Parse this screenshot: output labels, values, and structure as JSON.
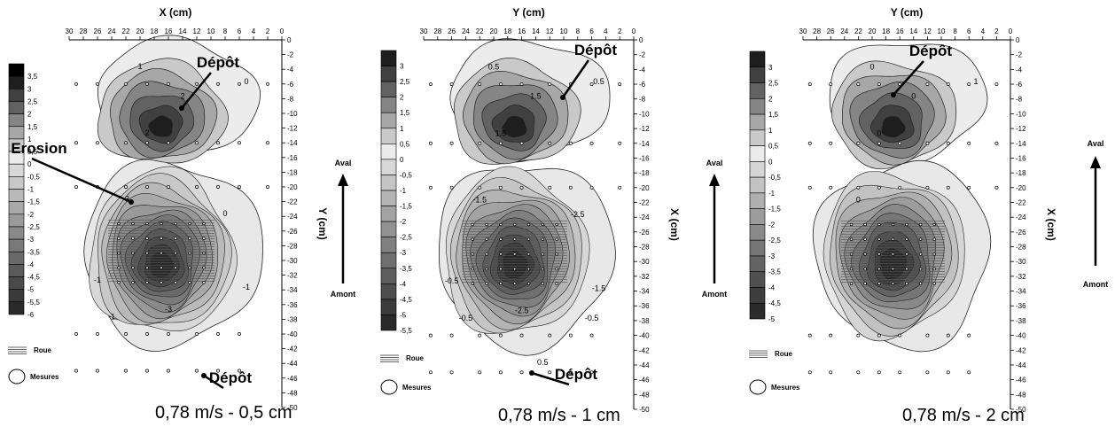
{
  "chart_data": [
    {
      "type": "contour",
      "caption": "0,78 m/s - 0,5 cm",
      "top_axis_label": "X (cm)",
      "side_axis_label": "Y (cm)",
      "top_ticks": [
        30,
        28,
        26,
        24,
        22,
        20,
        18,
        16,
        14,
        12,
        10,
        8,
        6,
        4,
        2,
        0
      ],
      "side_ticks": [
        0,
        -2,
        -4,
        -6,
        -8,
        -10,
        -12,
        -14,
        -16,
        -18,
        -20,
        -22,
        -24,
        -26,
        -28,
        -30,
        -32,
        -34,
        -36,
        -38,
        -40,
        -42,
        -44,
        -46,
        -48,
        -50
      ],
      "side_range": [
        0,
        -50
      ],
      "top_range": [
        30,
        0
      ],
      "legend_levels": [
        "3,5",
        "3",
        "2,5",
        "2",
        "1,5",
        "1",
        "0,5",
        "0",
        "-0,5",
        "-1",
        "-1,5",
        "-2",
        "-2,5",
        "-3",
        "-3,5",
        "-4",
        "-4,5",
        "-5",
        "-5,5",
        "-6"
      ],
      "legend_bottom": "-6",
      "roue_label": "Roue",
      "mesures_label": "Mesures",
      "annotations": [
        "Dépôt",
        "Erosion",
        "Dépôt"
      ],
      "flow_top_label": "",
      "flow_bottom_label": "",
      "deposit_peak": 3,
      "erosion_peak": -6,
      "contour_labels": [
        "1",
        "2",
        "0",
        "2",
        "-3",
        "0",
        "-1",
        "-1",
        "-3",
        "-1"
      ]
    },
    {
      "type": "contour",
      "caption": "0,78 m/s - 1 cm",
      "top_axis_label": "Y (cm)",
      "side_axis_label": "X (cm)",
      "top_ticks": [
        30,
        28,
        26,
        24,
        22,
        20,
        18,
        16,
        14,
        12,
        10,
        8,
        6,
        4,
        2,
        0
      ],
      "side_ticks": [
        0,
        -2,
        -4,
        -6,
        -8,
        -10,
        -12,
        -14,
        -16,
        -18,
        -20,
        -22,
        -24,
        -26,
        -28,
        -30,
        -32,
        -34,
        -36,
        -38,
        -40,
        -42,
        -44,
        -46,
        -48,
        -50
      ],
      "side_range": [
        0,
        -50
      ],
      "top_range": [
        30,
        0
      ],
      "legend_levels": [
        "3",
        "2,5",
        "2",
        "1,5",
        "1",
        "0,5",
        "0",
        "-0,5",
        "-1",
        "-1,5",
        "-2",
        "-2,5",
        "-3",
        "-3,5",
        "-4",
        "-4,5",
        "-5",
        "-5,5"
      ],
      "legend_bottom": "-5,5",
      "roue_label": "Roue",
      "mesures_label": "Mesures",
      "annotations": [
        "Dépôt",
        "Dépôt"
      ],
      "flow_top_label": "Aval",
      "flow_bottom_label": "Amont",
      "deposit_peak": 3,
      "erosion_peak": -5.5,
      "contour_labels": [
        "0.5",
        "1.5",
        "0.5",
        "1.5",
        "-1.5",
        "-2.5",
        "-0.5",
        "-1.5",
        "-2.5",
        "-0.5",
        "-0.5",
        "0.5"
      ]
    },
    {
      "type": "contour",
      "caption": "0,78 m/s - 2 cm",
      "top_axis_label": "Y (cm)",
      "side_axis_label": "X (cm)",
      "top_ticks": [
        30,
        28,
        26,
        24,
        22,
        20,
        18,
        16,
        14,
        12,
        10,
        8,
        6,
        4,
        2,
        0
      ],
      "side_ticks": [
        0,
        -2,
        -4,
        -6,
        -8,
        -10,
        -12,
        -14,
        -16,
        -18,
        -20,
        -22,
        -24,
        -26,
        -28,
        -30,
        -32,
        -34,
        -36,
        -38,
        -40,
        -42,
        -44,
        -46,
        -48,
        -50
      ],
      "side_range": [
        0,
        -50
      ],
      "top_range": [
        30,
        0
      ],
      "legend_levels": [
        "3",
        "2,5",
        "2",
        "1,5",
        "1",
        "0,5",
        "0",
        "-0,5",
        "-1",
        "-1,5",
        "-2",
        "-2,5",
        "-3",
        "-3,5",
        "-4",
        "-4,5",
        "-5"
      ],
      "legend_bottom": "-5",
      "roue_label": "Roue",
      "mesures_label": "Mesures",
      "annotations": [
        "Dépôt"
      ],
      "flow_top_label": "Aval",
      "flow_bottom_label": "Amont",
      "deposit_peak": 3,
      "erosion_peak": -5,
      "contour_labels": [
        "0",
        "0",
        "1",
        "0",
        "0"
      ]
    }
  ],
  "extra_flow": {
    "top_label": "Aval",
    "bottom_label": "Amont"
  }
}
